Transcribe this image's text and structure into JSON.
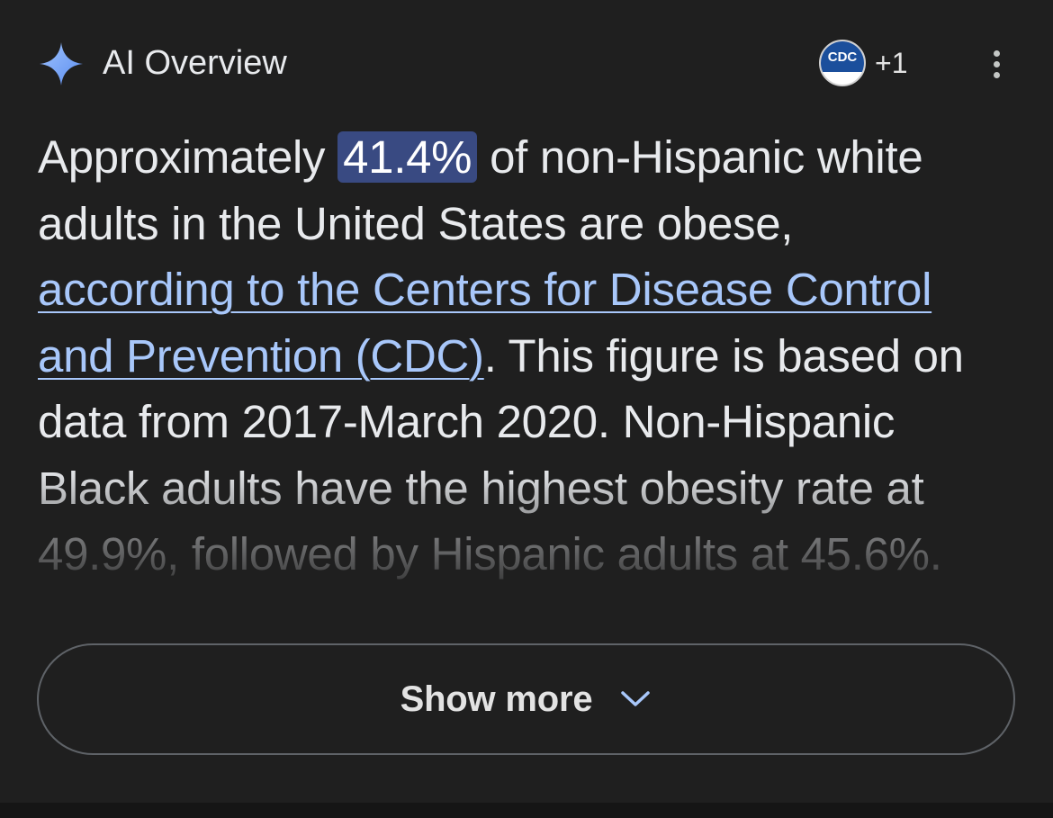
{
  "header": {
    "title": "AI Overview",
    "sparkle_icon": "sparkle-icon",
    "source_logo_text": "CDC",
    "source_count": "+1",
    "menu_icon": "more-vert-icon"
  },
  "overview": {
    "text_before": "Approximately ",
    "highlight": "41.4%",
    "text_middle": " of non-Hispanic white adults in the United States are obese, ",
    "link_text": "according to the Centers for Disease Control and Prevention (CDC)",
    "text_after": ". This figure is based on data from 2017-March 2020. Non-Hispanic Black adults have the highest obesity rate at 49.9%, followed by Hispanic adults at 45.6%."
  },
  "show_more": {
    "label": "Show more",
    "icon": "chevron-down-icon"
  },
  "colors": {
    "background": "#1f1f1f",
    "highlight": "#394a82",
    "link": "#a8c7fa",
    "sparkle": "#8ab4f8"
  }
}
